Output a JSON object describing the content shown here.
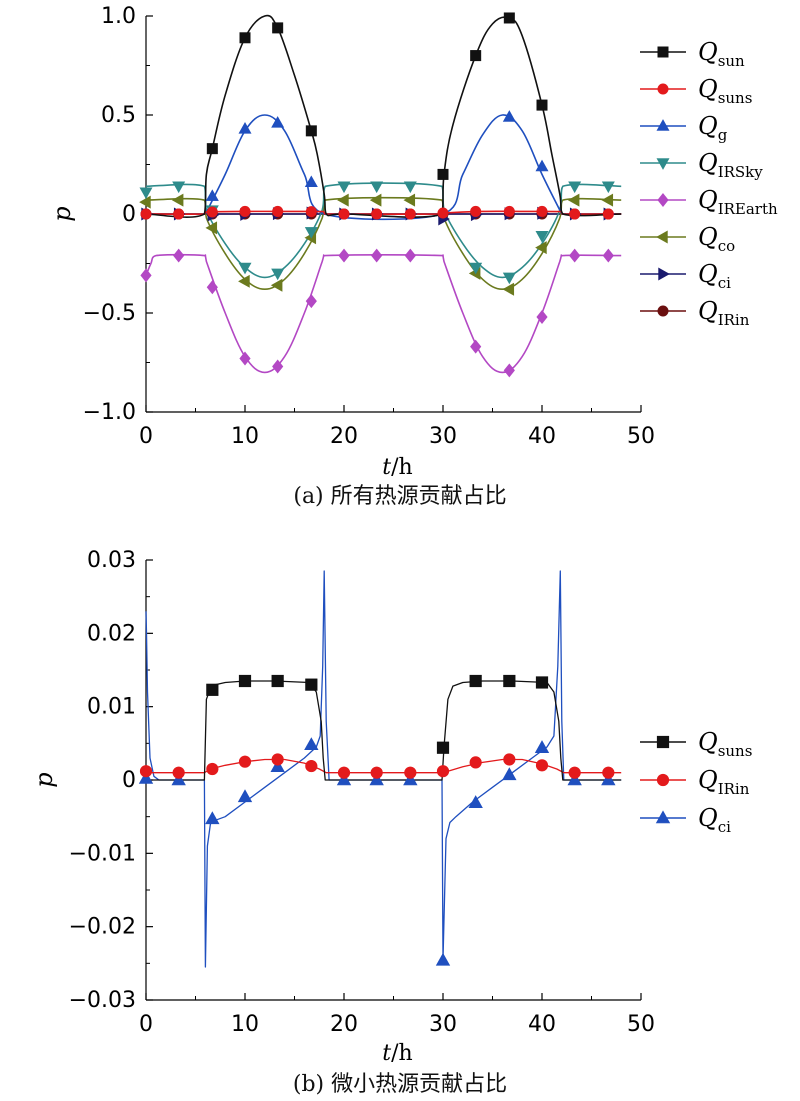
{
  "captions": [
    "(a) 所有热源贡献占比",
    "(b) 微小热源贡献占比"
  ],
  "chart_data": [
    {
      "type": "line",
      "title": "",
      "xlabel": "t/h",
      "ylabel": "p",
      "xlim": [
        0,
        50
      ],
      "ylim": [
        -1.0,
        1.0
      ],
      "xticks": [
        "0",
        "10",
        "20",
        "30",
        "40",
        "50"
      ],
      "yticks": [
        "−1.0",
        "−0.5",
        "0",
        "0.5",
        "1.0"
      ],
      "legend_position": "right",
      "series": [
        {
          "name": "Q",
          "sub": "sun",
          "color": "#111111",
          "marker": "square",
          "x": [
            0,
            5.9,
            6.1,
            6.7,
            8,
            10,
            12,
            13.3,
            15,
            16.7,
            17.3,
            18,
            18.2,
            20,
            29.9,
            30.1,
            31,
            33.3,
            35,
            36.7,
            38,
            40,
            41,
            41.8,
            42.1,
            48
          ],
          "y": [
            0,
            0,
            0.2,
            0.33,
            0.6,
            0.89,
            1.0,
            0.94,
            0.7,
            0.42,
            0.3,
            0.1,
            0,
            0,
            0,
            0.2,
            0.45,
            0.8,
            0.96,
            0.99,
            0.9,
            0.55,
            0.3,
            0.1,
            0,
            0
          ],
          "mx": [
            6.7,
            10,
            13.3,
            16.7,
            30,
            33.3,
            36.7,
            40
          ],
          "my": [
            0.33,
            0.89,
            0.94,
            0.42,
            0.2,
            0.8,
            0.99,
            0.55
          ]
        },
        {
          "name": "Q",
          "sub": "suns",
          "color": "#e31a1c",
          "marker": "circle",
          "x": [
            0,
            5.9,
            6.1,
            10,
            14,
            17.9,
            18.1,
            29.9,
            30.1,
            34,
            38,
            41.9,
            42.1,
            48
          ],
          "y": [
            0,
            0,
            0.01,
            0.013,
            0.013,
            0.012,
            0,
            0,
            0.005,
            0.013,
            0.013,
            0.012,
            0,
            0
          ],
          "mx": [
            0,
            3.3,
            6.7,
            10,
            13.3,
            16.7,
            20,
            23.3,
            26.7,
            30,
            33.3,
            36.7,
            40,
            43.3,
            46.7
          ],
          "my": [
            0,
            0,
            0.01,
            0.013,
            0.013,
            0.012,
            0,
            0,
            0,
            0.005,
            0.013,
            0.013,
            0.013,
            0,
            0
          ]
        },
        {
          "name": "Q",
          "sub": "g",
          "color": "#1f4fbf",
          "marker": "triangle-up",
          "x": [
            6,
            8,
            10,
            12,
            14,
            16,
            18,
            30,
            32,
            34,
            36,
            38,
            40,
            42
          ],
          "y": [
            0,
            0.2,
            0.42,
            0.5,
            0.42,
            0.2,
            0,
            0,
            0.2,
            0.4,
            0.5,
            0.42,
            0.2,
            0
          ],
          "mx": [
            6.7,
            10,
            13.3,
            16.7,
            36.7,
            40
          ],
          "my": [
            0.09,
            0.43,
            0.46,
            0.16,
            0.49,
            0.24
          ]
        },
        {
          "name": "Q",
          "sub": "IRSky",
          "color": "#2e8b8b",
          "marker": "triangle-down",
          "x": [
            0,
            5.9,
            6.1,
            8,
            10,
            12,
            14,
            16,
            17.8,
            18.1,
            29.9,
            30.1,
            32,
            34,
            36,
            38,
            40,
            41.8,
            42.1,
            48
          ],
          "y": [
            0.14,
            0.14,
            0.02,
            -0.15,
            -0.27,
            -0.32,
            -0.27,
            -0.15,
            0.02,
            0.14,
            0.14,
            0.02,
            -0.15,
            -0.27,
            -0.32,
            -0.27,
            -0.15,
            0.02,
            0.14,
            0.14
          ],
          "mx": [
            0,
            3.3,
            6.7,
            10,
            13.3,
            16.7,
            20,
            23.3,
            26.7,
            33.3,
            36.7,
            40,
            43.3,
            46.7
          ],
          "my": [
            0.11,
            0.14,
            0.02,
            -0.27,
            -0.3,
            -0.09,
            0.14,
            0.14,
            0.14,
            -0.27,
            -0.32,
            -0.11,
            0.14,
            0.14
          ]
        },
        {
          "name": "Q",
          "sub": "IREarth",
          "color": "#b348c4",
          "marker": "diamond",
          "x": [
            0,
            0.5,
            1,
            5.9,
            6.1,
            8,
            10,
            12,
            14,
            16,
            17.8,
            18.1,
            29.9,
            30.1,
            32,
            34,
            36,
            38,
            40,
            41.8,
            42.1,
            48
          ],
          "y": [
            -0.31,
            -0.25,
            -0.21,
            -0.21,
            -0.24,
            -0.5,
            -0.72,
            -0.8,
            -0.72,
            -0.5,
            -0.24,
            -0.21,
            -0.21,
            -0.24,
            -0.5,
            -0.72,
            -0.8,
            -0.72,
            -0.5,
            -0.24,
            -0.21,
            -0.21
          ],
          "mx": [
            0,
            3.3,
            6.7,
            10,
            13.3,
            16.7,
            20,
            23.3,
            26.7,
            33.3,
            36.7,
            40,
            43.3,
            46.7
          ],
          "my": [
            -0.31,
            -0.21,
            -0.37,
            -0.73,
            -0.77,
            -0.44,
            -0.21,
            -0.21,
            -0.21,
            -0.67,
            -0.79,
            -0.52,
            -0.21,
            -0.21
          ]
        },
        {
          "name": "Q",
          "sub": "co",
          "color": "#6b7a1e",
          "marker": "triangle-left",
          "x": [
            0,
            5.9,
            6.1,
            8,
            10,
            12,
            14,
            16,
            17.8,
            18.1,
            29.9,
            30.1,
            32,
            34,
            36,
            38,
            40,
            41.8,
            42.1,
            48
          ],
          "y": [
            0.07,
            0.07,
            -0.02,
            -0.2,
            -0.33,
            -0.38,
            -0.33,
            -0.2,
            -0.02,
            0.07,
            0.07,
            -0.02,
            -0.2,
            -0.33,
            -0.38,
            -0.33,
            -0.2,
            -0.02,
            0.07,
            0.07
          ],
          "mx": [
            0,
            3.3,
            6.7,
            10,
            13.3,
            16.7,
            20,
            23.3,
            26.7,
            33.3,
            36.7,
            40,
            43.3,
            46.7
          ],
          "my": [
            0.06,
            0.07,
            -0.07,
            -0.34,
            -0.36,
            -0.12,
            0.07,
            0.07,
            0.07,
            -0.3,
            -0.38,
            -0.17,
            0.07,
            0.07
          ]
        },
        {
          "name": "Q",
          "sub": "ci",
          "color": "#1a1a6e",
          "marker": "triangle-right",
          "x": [
            0,
            48
          ],
          "y": [
            0,
            0
          ],
          "mx": [
            0,
            3.3,
            6.7,
            10,
            13.3,
            16.7,
            20,
            23.3,
            26.7,
            30,
            33.3,
            36.7,
            40,
            43.3,
            46.7
          ],
          "my": [
            0,
            0,
            -0.005,
            -0.002,
            0.002,
            0.005,
            0,
            0,
            0,
            -0.025,
            -0.003,
            0.001,
            0.004,
            0,
            0
          ]
        },
        {
          "name": "Q",
          "sub": "IRin",
          "color": "#6b0f0f",
          "marker": "circle",
          "x": [
            0,
            48
          ],
          "y": [
            0,
            0
          ],
          "mx": [
            0,
            3.3,
            6.7,
            10,
            13.3,
            16.7,
            20,
            23.3,
            26.7,
            30,
            33.3,
            36.7,
            40,
            43.3,
            46.7
          ],
          "my": [
            0,
            0,
            0,
            0,
            0,
            0,
            0,
            0,
            0,
            0,
            0,
            0,
            0,
            0,
            0
          ]
        }
      ]
    },
    {
      "type": "line",
      "title": "",
      "xlabel": "t/h",
      "ylabel": "p",
      "xlim": [
        0,
        50
      ],
      "ylim": [
        -0.03,
        0.03
      ],
      "xticks": [
        "0",
        "10",
        "20",
        "30",
        "40",
        "50"
      ],
      "yticks": [
        "−0.03",
        "−0.02",
        "−0.01",
        "0",
        "0.01",
        "0.02",
        "0.03"
      ],
      "legend_position": "right",
      "series": [
        {
          "name": "Q",
          "sub": "suns",
          "color": "#111111",
          "marker": "square",
          "x": [
            0,
            5.9,
            6.1,
            6.5,
            7,
            8,
            10,
            13,
            16.5,
            17.2,
            17.7,
            17.9,
            18.1,
            29.9,
            30.1,
            30.5,
            31,
            32,
            34,
            37,
            40.5,
            41.2,
            41.7,
            41.9,
            42.1,
            48
          ],
          "y": [
            0,
            0,
            0.011,
            0.0125,
            0.013,
            0.0133,
            0.0135,
            0.0135,
            0.0133,
            0.012,
            0.008,
            0.003,
            0,
            0,
            0.0045,
            0.011,
            0.0128,
            0.0133,
            0.0135,
            0.0135,
            0.0133,
            0.012,
            0.008,
            0.003,
            0,
            0
          ],
          "mx": [
            6.7,
            10,
            13.3,
            16.7,
            30,
            33.3,
            36.7,
            40
          ],
          "my": [
            0.0123,
            0.0135,
            0.0135,
            0.013,
            0.0044,
            0.0135,
            0.0135,
            0.0133
          ]
        },
        {
          "name": "Q",
          "sub": "IRin",
          "color": "#e31a1c",
          "marker": "circle",
          "x": [
            0,
            5.9,
            6.5,
            8,
            10,
            12,
            14,
            16,
            17.5,
            18.2,
            29.9,
            30.5,
            32,
            34,
            36,
            38,
            40,
            41.5,
            42.2,
            48
          ],
          "y": [
            0.001,
            0.001,
            0.0015,
            0.002,
            0.0025,
            0.0028,
            0.0028,
            0.0023,
            0.0015,
            0.001,
            0.001,
            0.0012,
            0.0018,
            0.0024,
            0.0028,
            0.0028,
            0.0022,
            0.0015,
            0.001,
            0.001
          ],
          "mx": [
            0,
            3.3,
            6.7,
            10,
            13.3,
            16.7,
            20,
            23.3,
            26.7,
            30,
            33.3,
            36.7,
            40,
            43.3,
            46.7
          ],
          "my": [
            0.0012,
            0.001,
            0.0015,
            0.0025,
            0.0028,
            0.0019,
            0.001,
            0.001,
            0.001,
            0.0012,
            0.0024,
            0.0028,
            0.002,
            0.001,
            0.001
          ]
        },
        {
          "name": "Q",
          "sub": "ci",
          "color": "#1f4fbf",
          "marker": "triangle-up",
          "x": [
            0,
            0.05,
            0.15,
            0.4,
            0.8,
            1.3,
            5.9,
            6.0,
            6.2,
            6.5,
            7,
            8,
            10,
            12,
            14,
            16,
            17.2,
            17.6,
            17.85,
            18.0,
            18.2,
            18.5,
            29.9,
            30.0,
            30.3,
            30.7,
            31.3,
            33,
            35,
            37,
            39,
            40.5,
            41.2,
            41.6,
            41.85,
            42.0,
            42.2,
            42.5,
            48
          ],
          "y": [
            0.023,
            0.02,
            0.012,
            0.003,
            0.0005,
            0,
            0,
            -0.0255,
            -0.009,
            -0.006,
            -0.0055,
            -0.005,
            -0.003,
            -0.001,
            0.001,
            0.003,
            0.0045,
            0.006,
            0.0155,
            0.0285,
            0.008,
            0,
            0,
            -0.0245,
            -0.008,
            -0.0058,
            -0.005,
            -0.003,
            -0.001,
            0.001,
            0.003,
            0.0045,
            0.006,
            0.0155,
            0.0285,
            0.008,
            0,
            0,
            0
          ],
          "mx": [
            0,
            3.3,
            6.7,
            10,
            13.3,
            16.7,
            20,
            23.3,
            26.7,
            30,
            33.3,
            36.7,
            40,
            43.3,
            46.7
          ],
          "my": [
            0.0002,
            0,
            -0.0053,
            -0.0023,
            0.0018,
            0.0048,
            0,
            0,
            0,
            -0.0246,
            -0.0031,
            0.0007,
            0.0044,
            0,
            0
          ]
        }
      ]
    }
  ]
}
